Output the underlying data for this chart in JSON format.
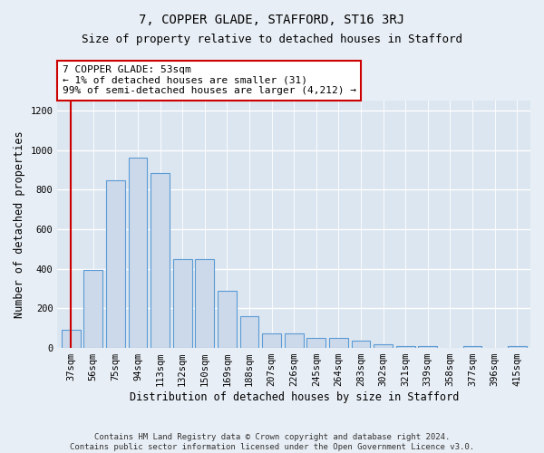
{
  "title": "7, COPPER GLADE, STAFFORD, ST16 3RJ",
  "subtitle": "Size of property relative to detached houses in Stafford",
  "xlabel": "Distribution of detached houses by size in Stafford",
  "ylabel": "Number of detached properties",
  "categories": [
    "37sqm",
    "56sqm",
    "75sqm",
    "94sqm",
    "113sqm",
    "132sqm",
    "150sqm",
    "169sqm",
    "188sqm",
    "207sqm",
    "226sqm",
    "245sqm",
    "264sqm",
    "283sqm",
    "302sqm",
    "321sqm",
    "339sqm",
    "358sqm",
    "377sqm",
    "396sqm",
    "415sqm"
  ],
  "values": [
    90,
    395,
    845,
    960,
    885,
    450,
    450,
    290,
    160,
    75,
    75,
    50,
    50,
    35,
    20,
    10,
    10,
    0,
    10,
    0,
    10
  ],
  "bar_color": "#ccd9ea",
  "bar_edge_color": "#5b9bd5",
  "marker_color": "#cc0000",
  "annotation_text": "7 COPPER GLADE: 53sqm\n← 1% of detached houses are smaller (31)\n99% of semi-detached houses are larger (4,212) →",
  "annotation_box_edge_color": "#cc0000",
  "ylim": [
    0,
    1250
  ],
  "yticks": [
    0,
    200,
    400,
    600,
    800,
    1000,
    1200
  ],
  "footer_text": "Contains HM Land Registry data © Crown copyright and database right 2024.\nContains public sector information licensed under the Open Government Licence v3.0.",
  "bg_color": "#e8eef5",
  "plot_bg_color": "#dce6f0",
  "grid_color": "#ffffff",
  "title_fontsize": 10,
  "subtitle_fontsize": 9,
  "label_fontsize": 8.5,
  "tick_fontsize": 7.5,
  "footer_fontsize": 6.5
}
